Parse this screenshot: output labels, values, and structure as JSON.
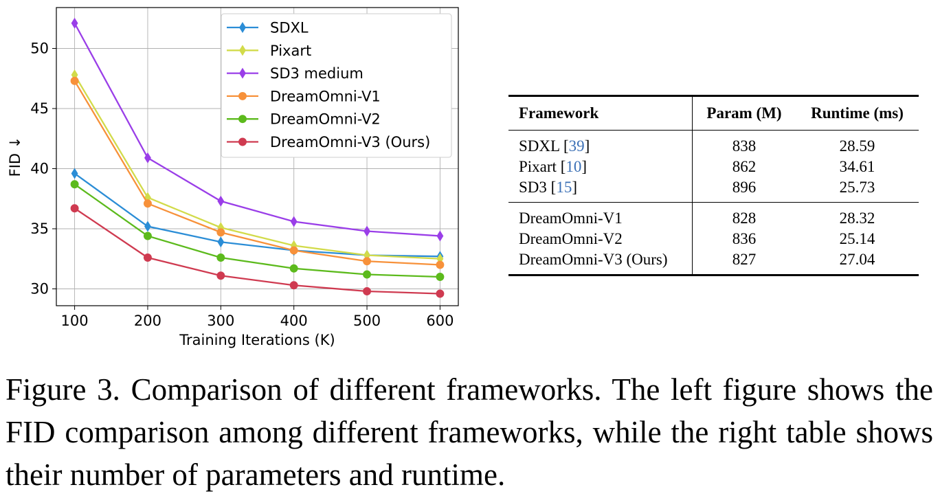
{
  "chart_data": {
    "type": "line",
    "xlabel": "Training Iterations (K)",
    "ylabel": "FID ↓",
    "x": [
      100,
      200,
      300,
      400,
      500,
      600
    ],
    "xticks": [
      "100",
      "200",
      "300",
      "400",
      "500",
      "600"
    ],
    "yticks": [
      "30",
      "35",
      "40",
      "45",
      "50"
    ],
    "xlim": [
      75,
      625
    ],
    "ylim": [
      28.6,
      53.4
    ],
    "grid": true,
    "legend_position": "top-right",
    "series": [
      {
        "name": "SDXL",
        "color": "#2b8dd6",
        "marker": "diamond",
        "values": [
          39.6,
          35.2,
          33.9,
          33.2,
          32.8,
          32.7
        ]
      },
      {
        "name": "Pixart",
        "color": "#d2db4a",
        "marker": "diamond",
        "values": [
          47.8,
          37.6,
          35.1,
          33.6,
          32.8,
          32.5
        ]
      },
      {
        "name": "SD3 medium",
        "color": "#9a3ee8",
        "marker": "diamond",
        "values": [
          52.1,
          40.9,
          37.3,
          35.6,
          34.8,
          34.4
        ]
      },
      {
        "name": "DreamOmni-V1",
        "color": "#f7913a",
        "marker": "circle",
        "values": [
          47.3,
          37.1,
          34.7,
          33.2,
          32.3,
          32.0
        ]
      },
      {
        "name": "DreamOmni-V2",
        "color": "#5cba1c",
        "marker": "circle",
        "values": [
          38.7,
          34.4,
          32.6,
          31.7,
          31.2,
          31.0
        ]
      },
      {
        "name": "DreamOmni-V3 (Ours)",
        "color": "#cf3a50",
        "marker": "circle",
        "values": [
          36.7,
          32.6,
          31.1,
          30.3,
          29.8,
          29.6
        ]
      }
    ]
  },
  "table": {
    "headers": {
      "framework": "Framework",
      "param": "Param (M)",
      "runtime": "Runtime (ms)"
    },
    "group1": [
      {
        "name": "SDXL",
        "ref": "39",
        "param": "838",
        "runtime": "28.59"
      },
      {
        "name": "Pixart",
        "ref": "10",
        "param": "862",
        "runtime": "34.61"
      },
      {
        "name": "SD3",
        "ref": "15",
        "param": "896",
        "runtime": "25.73"
      }
    ],
    "group2": [
      {
        "name": "DreamOmni-V1",
        "param": "828",
        "runtime": "28.32"
      },
      {
        "name": "DreamOmni-V2",
        "param": "836",
        "runtime": "25.14"
      },
      {
        "name": "DreamOmni-V3 (Ours)",
        "param": "827",
        "runtime": "27.04"
      }
    ]
  },
  "caption": "Figure 3.  Comparison of different frameworks.  The left figure shows the FID comparison among different frameworks, while the right table shows their number of parameters and runtime."
}
